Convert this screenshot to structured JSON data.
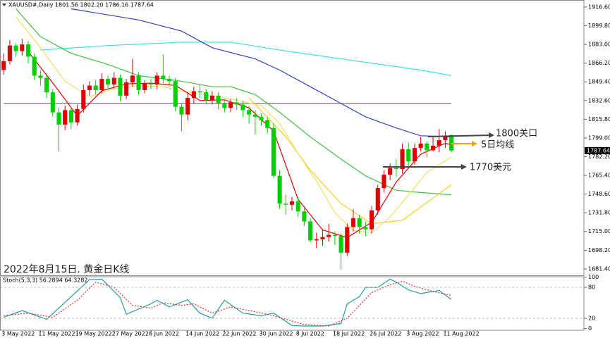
{
  "chart_data": [
    {
      "type": "candlestick",
      "title": "XAUUSD#,Daily  1801.56 1802.20 1786.16 1787.64",
      "annotations": [
        "1800关口",
        "5日均线",
        "1770美元",
        "2022年8月15日. 黄金日K线"
      ],
      "up_color": "#e00000",
      "down_color": "#00d000",
      "xlim": [
        -0.6,
        94.6
      ],
      "ylim": [
        1675,
        1921
      ],
      "yticks": [
        {
          "value": 1916.6,
          "label": "1916.60"
        },
        {
          "value": 1899.8,
          "label": "1899.80"
        },
        {
          "value": 1883,
          "label": "1883.00"
        },
        {
          "value": 1866.2,
          "label": "1866.20"
        },
        {
          "value": 1849.4,
          "label": "1849.40"
        },
        {
          "value": 1832.6,
          "label": "1832.60"
        },
        {
          "value": 1815.8,
          "label": "1815.80"
        },
        {
          "value": 1799,
          "label": "1799.00"
        },
        {
          "value": 1782.2,
          "label": "1782.20"
        },
        {
          "value": 1765.4,
          "label": "1765.40"
        },
        {
          "value": 1748.6,
          "label": "1748.60"
        },
        {
          "value": 1731.8,
          "label": "1731.80"
        },
        {
          "value": 1715,
          "label": "1715.00"
        },
        {
          "value": 1698.2,
          "label": "1698.20"
        },
        {
          "value": 1681.4,
          "label": "1681.40"
        }
      ],
      "last_price": {
        "value": 1787.64,
        "label": "1787.64"
      },
      "open": [
        1860,
        1868,
        1882,
        1877,
        1883,
        1872,
        1855,
        1853,
        1840,
        1822,
        1811,
        1824,
        1813,
        1825,
        1842,
        1846,
        1842,
        1852,
        1847,
        1853,
        1837,
        1849,
        1855,
        1842,
        1848,
        1847,
        1855,
        1852,
        1850,
        1827,
        1820,
        1835,
        1841,
        1840,
        1833,
        1837,
        1830,
        1826,
        1831,
        1829,
        1824,
        1820,
        1818,
        1815,
        1808,
        1765,
        1740,
        1739,
        1742,
        1733,
        1724,
        1707,
        1708,
        1710,
        1712,
        1711,
        1696,
        1719,
        1727,
        1719,
        1717,
        1734,
        1754,
        1766,
        1772,
        1771,
        1789,
        1778,
        1790,
        1794,
        1788,
        1792,
        1797,
        1801.56
      ],
      "high": [
        1875,
        1887,
        1884,
        1888,
        1886,
        1875,
        1860,
        1857,
        1843,
        1826,
        1828,
        1826,
        1829,
        1847,
        1850,
        1851,
        1857,
        1855,
        1858,
        1856,
        1852,
        1870,
        1858,
        1851,
        1852,
        1858,
        1874,
        1855,
        1853,
        1830,
        1840,
        1845,
        1847,
        1843,
        1841,
        1840,
        1833,
        1834,
        1835,
        1832,
        1828,
        1824,
        1821,
        1818,
        1812,
        1770,
        1748,
        1746,
        1746,
        1738,
        1727,
        1714,
        1717,
        1722,
        1715,
        1713,
        1722,
        1735,
        1730,
        1724,
        1738,
        1757,
        1770,
        1776,
        1780,
        1794,
        1795,
        1794,
        1800,
        1796,
        1800,
        1807,
        1805,
        1802.2
      ],
      "low": [
        1856,
        1865,
        1872,
        1873,
        1866,
        1851,
        1846,
        1835,
        1818,
        1787,
        1806,
        1807,
        1810,
        1822,
        1837,
        1838,
        1839,
        1843,
        1843,
        1832,
        1834,
        1845,
        1838,
        1839,
        1843,
        1843,
        1848,
        1845,
        1823,
        1805,
        1815,
        1830,
        1835,
        1829,
        1829,
        1825,
        1822,
        1822,
        1824,
        1818,
        1812,
        1802,
        1810,
        1803,
        1763,
        1735,
        1730,
        1734,
        1728,
        1720,
        1705,
        1700,
        1702,
        1706,
        1703,
        1681,
        1693,
        1715,
        1713,
        1711,
        1713,
        1730,
        1750,
        1761,
        1764,
        1767,
        1774,
        1775,
        1787,
        1782,
        1787,
        1786,
        1790,
        1786.16
      ],
      "close": [
        1868,
        1882,
        1877,
        1883,
        1872,
        1855,
        1853,
        1840,
        1822,
        1811,
        1824,
        1813,
        1825,
        1842,
        1846,
        1842,
        1852,
        1847,
        1853,
        1837,
        1849,
        1855,
        1842,
        1848,
        1847,
        1855,
        1852,
        1850,
        1827,
        1820,
        1835,
        1841,
        1840,
        1833,
        1837,
        1830,
        1826,
        1831,
        1829,
        1824,
        1820,
        1818,
        1815,
        1808,
        1765,
        1740,
        1739,
        1742,
        1733,
        1724,
        1707,
        1708,
        1710,
        1712,
        1711,
        1696,
        1719,
        1727,
        1719,
        1717,
        1734,
        1754,
        1766,
        1772,
        1771,
        1789,
        1778,
        1790,
        1794,
        1788,
        1792,
        1797,
        1800,
        1787.64
      ],
      "series": [
        {
          "color": "#8e6a8e",
          "x": [
            0,
            73
          ],
          "values": [
            1830,
            1830
          ]
        },
        {
          "color": "#40e0e0",
          "x": [
            6,
            17,
            29,
            37,
            45,
            55,
            68,
            73
          ],
          "values": [
            1878,
            1882,
            1885,
            1885,
            1878,
            1870,
            1860,
            1855
          ]
        },
        {
          "color": "#3040c0",
          "x": [
            11,
            22,
            29,
            34,
            41,
            45,
            50,
            55,
            59,
            64,
            68,
            73
          ],
          "values": [
            1915,
            1905,
            1895,
            1880,
            1870,
            1860,
            1845,
            1830,
            1818,
            1808,
            1801,
            1800
          ]
        },
        {
          "color": "#40c040",
          "x": [
            2,
            6,
            11,
            17,
            22,
            29,
            34,
            37,
            41,
            45,
            50,
            55,
            59,
            64,
            68,
            73
          ],
          "values": [
            1915,
            1890,
            1875,
            1865,
            1855,
            1850,
            1845,
            1845,
            1838,
            1822,
            1800,
            1780,
            1765,
            1752,
            1750,
            1748
          ]
        },
        {
          "color": "#f0d020",
          "x": [
            40,
            46,
            50,
            55,
            60,
            65,
            70,
            73
          ],
          "values": [
            1835,
            1800,
            1770,
            1740,
            1722,
            1725,
            1745,
            1757
          ]
        },
        {
          "color": "#f0e060",
          "x": [
            2,
            6,
            10,
            14,
            18,
            22,
            26,
            30,
            34,
            38,
            42,
            45,
            48,
            51,
            54,
            57,
            60,
            63,
            66,
            69,
            73
          ],
          "values": [
            1908,
            1880,
            1850,
            1836,
            1843,
            1846,
            1845,
            1840,
            1837,
            1833,
            1828,
            1812,
            1785,
            1760,
            1732,
            1716,
            1714,
            1728,
            1748,
            1768,
            1782
          ]
        },
        {
          "color": "#e00000",
          "x": [
            4,
            8,
            12,
            16,
            20,
            24,
            28,
            32,
            36,
            40,
            44,
            48,
            52,
            56,
            60,
            64,
            68,
            72,
            73
          ],
          "values": [
            1876.4,
            1848.4,
            1819,
            1841.4,
            1847.6,
            1848.2,
            1846.2,
            1832.6,
            1833.2,
            1826,
            1805.2,
            1743.8,
            1716.4,
            1709.6,
            1723.2,
            1759.4,
            1784.4,
            1794.2,
            1793
          ]
        }
      ]
    },
    {
      "type": "line",
      "title": "Stoch(5,3,3) 56.2894 64.3282",
      "xlim": [
        -0.6,
        94.6
      ],
      "xticks": [
        {
          "value": 0,
          "label": "3 May 2022"
        },
        {
          "value": 6,
          "label": "11 May 2022"
        },
        {
          "value": 12,
          "label": "19 May 2022"
        },
        {
          "value": 18,
          "label": "27 May 2022"
        },
        {
          "value": 24,
          "label": "6 Jun 2022"
        },
        {
          "value": 30,
          "label": "14 Jun 2022"
        },
        {
          "value": 36,
          "label": "22 Jun 2022"
        },
        {
          "value": 42,
          "label": "30 Jun 2022"
        },
        {
          "value": 48,
          "label": "8 Jul 2022"
        },
        {
          "value": 54,
          "label": "18 Jul 2022"
        },
        {
          "value": 60,
          "label": "26 Jul 2022"
        },
        {
          "value": 66,
          "label": "3 Aug 2022"
        },
        {
          "value": 72,
          "label": "11 Aug 2022"
        }
      ],
      "ylim": [
        0,
        100
      ],
      "yticks": [
        0,
        20,
        80,
        100
      ],
      "series": [
        {
          "color": "#20a0a0",
          "dashed": false,
          "x": [
            0,
            3,
            7,
            11,
            14,
            16,
            19,
            20,
            24,
            25,
            27,
            30,
            32,
            34,
            36,
            39,
            42,
            44,
            47,
            49,
            52,
            55,
            56,
            58,
            59,
            61,
            63,
            64,
            66,
            68,
            71,
            73
          ],
          "values": [
            22,
            35,
            18,
            62,
            95,
            96,
            60,
            28,
            48,
            55,
            42,
            56,
            30,
            20,
            55,
            30,
            25,
            30,
            6,
            5,
            5,
            10,
            48,
            62,
            80,
            80,
            96,
            90,
            75,
            68,
            74,
            56.2894
          ]
        },
        {
          "color": "#e03030",
          "dashed": true,
          "x": [
            0,
            4,
            8,
            12,
            15,
            18,
            21,
            24,
            26,
            29,
            31,
            34,
            37,
            40,
            43,
            46,
            49,
            53,
            56,
            58,
            60,
            63,
            65,
            67,
            70,
            73
          ],
          "values": [
            25,
            30,
            22,
            55,
            90,
            80,
            45,
            40,
            50,
            45,
            48,
            30,
            42,
            35,
            28,
            18,
            8,
            5,
            20,
            45,
            70,
            85,
            92,
            82,
            72,
            64.3282
          ]
        }
      ]
    }
  ]
}
